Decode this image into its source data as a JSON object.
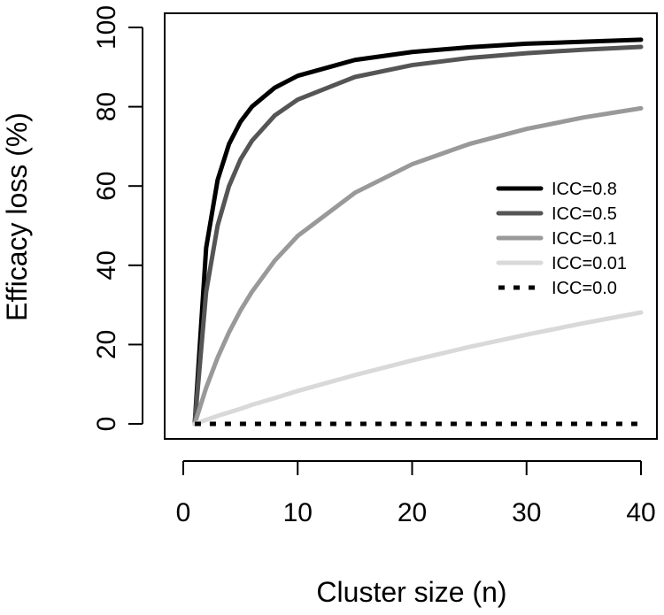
{
  "chart_data": {
    "type": "line",
    "title": "",
    "xlabel": "Cluster size (n)",
    "ylabel": "Efficacy loss (%)",
    "xlim": [
      0,
      40
    ],
    "ylim": [
      0,
      100
    ],
    "xticks": [
      0,
      10,
      20,
      30,
      40
    ],
    "yticks": [
      0,
      20,
      40,
      60,
      80,
      100
    ],
    "grid": false,
    "legend": {
      "placement": "right",
      "entries": [
        "ICC=0.8",
        "ICC=0.5",
        "ICC=0.1",
        "ICC=0.01",
        "ICC=0.0"
      ]
    },
    "x": [
      1,
      2,
      3,
      4,
      5,
      6,
      8,
      10,
      15,
      20,
      25,
      30,
      35,
      40
    ],
    "series": [
      {
        "name": "ICC=0.8",
        "values": [
          0,
          44.4,
          61.5,
          70.6,
          76.2,
          80.0,
          84.8,
          87.8,
          91.8,
          93.8,
          95.0,
          95.9,
          96.4,
          96.9
        ],
        "color": "#000000",
        "dash": "solid"
      },
      {
        "name": "ICC=0.5",
        "values": [
          0,
          33.3,
          50.0,
          60.0,
          66.7,
          71.4,
          77.8,
          81.8,
          87.5,
          90.5,
          92.3,
          93.5,
          94.4,
          95.1
        ],
        "color": "#555555",
        "dash": "solid"
      },
      {
        "name": "ICC=0.1",
        "values": [
          0,
          9.1,
          16.7,
          23.1,
          28.6,
          33.3,
          41.2,
          47.4,
          58.3,
          65.5,
          70.6,
          74.4,
          77.3,
          79.6
        ],
        "color": "#999999",
        "dash": "solid"
      },
      {
        "name": "ICC=0.01",
        "values": [
          0,
          1.0,
          2.0,
          2.9,
          3.8,
          4.8,
          6.5,
          8.3,
          12.3,
          16.0,
          19.4,
          22.5,
          25.4,
          28.1
        ],
        "color": "#d9d9d9",
        "dash": "solid"
      },
      {
        "name": "ICC=0.0",
        "values": [
          0,
          0,
          0,
          0,
          0,
          0,
          0,
          0,
          0,
          0,
          0,
          0,
          0,
          0
        ],
        "color": "#000000",
        "dash": "dotted"
      }
    ]
  }
}
